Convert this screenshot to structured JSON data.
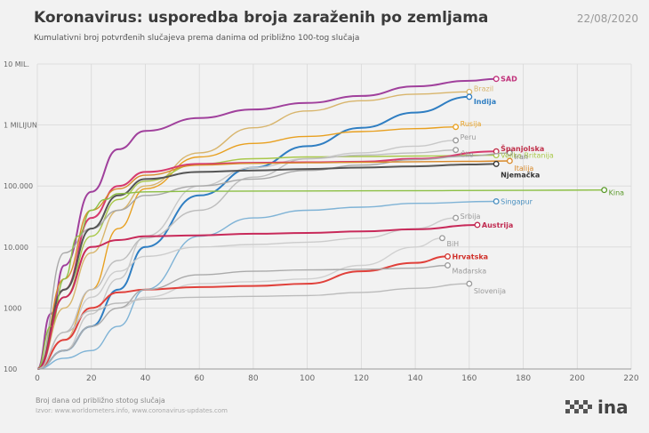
{
  "header": {
    "title": "Koronavirus: usporedba broja zaraženih po zemljama",
    "subtitle": "Kumulativni broj potvrđenih slučajeva prema danima od približno 100-tog slučaja",
    "date": "22/08/2020"
  },
  "footer": {
    "axis_note": "Broj dana od približno stotog slučaja",
    "source": "Izvor: www.worldometers.info, www.coronavirus-updates.com"
  },
  "logo": {
    "text": "ina"
  },
  "chart_data": {
    "type": "line",
    "title": "Koronavirus: usporedba broja zaraženih po zemljama",
    "subtitle": "Kumulativni broj potvrđenih slučajeva prema danima od približno 100-tog slučaja",
    "xlabel": "Broj dana od približno stotog slučaja",
    "ylabel": "",
    "xlim": [
      0,
      220
    ],
    "ylim": [
      100,
      10000000
    ],
    "yscale": "log",
    "grid": true,
    "xticks": [
      0,
      20,
      40,
      60,
      80,
      100,
      120,
      140,
      160,
      180,
      200,
      220
    ],
    "yticks": [
      {
        "value": 100,
        "label": "100"
      },
      {
        "value": 1000,
        "label": "1000"
      },
      {
        "value": 10000,
        "label": "10.000"
      },
      {
        "value": 100000,
        "label": "100.000"
      },
      {
        "value": 1000000,
        "label": "1 MILIJUN"
      },
      {
        "value": 10000000,
        "label": "10 MIL."
      }
    ],
    "series": [
      {
        "name": "SAD",
        "color": "#a0409c",
        "labelColor": "#c0307a",
        "bold": true,
        "x": [
          0,
          5,
          10,
          20,
          30,
          40,
          60,
          80,
          100,
          120,
          140,
          160,
          170
        ],
        "y": [
          100,
          800,
          5000,
          80000,
          400000,
          800000,
          1300000,
          1800000,
          2300000,
          3000000,
          4300000,
          5300000,
          5700000
        ]
      },
      {
        "name": "Brazil",
        "color": "#d8b56c",
        "labelColor": "#d8b56c",
        "bold": false,
        "x": [
          0,
          10,
          20,
          30,
          40,
          60,
          80,
          100,
          120,
          140,
          160
        ],
        "y": [
          100,
          1000,
          8000,
          40000,
          100000,
          350000,
          900000,
          1700000,
          2500000,
          3200000,
          3500000
        ]
      },
      {
        "name": "Indija",
        "color": "#2f7ec2",
        "labelColor": "#2f7ec2",
        "bold": true,
        "x": [
          0,
          10,
          20,
          30,
          40,
          60,
          80,
          100,
          120,
          140,
          160
        ],
        "y": [
          100,
          200,
          500,
          2000,
          10000,
          70000,
          200000,
          450000,
          900000,
          1600000,
          2900000
        ]
      },
      {
        "name": "Rusija",
        "color": "#e8a020",
        "labelColor": "#e8a020",
        "bold": false,
        "x": [
          0,
          10,
          20,
          30,
          40,
          60,
          80,
          100,
          120,
          140,
          155
        ],
        "y": [
          100,
          300,
          2000,
          20000,
          90000,
          300000,
          500000,
          650000,
          780000,
          870000,
          930000
        ]
      },
      {
        "name": "Velika Britanija",
        "color": "#a9c84a",
        "labelColor": "#a9c84a",
        "bold": false,
        "x": [
          0,
          10,
          20,
          30,
          40,
          60,
          80,
          100,
          120,
          140,
          170
        ],
        "y": [
          100,
          1500,
          15000,
          60000,
          120000,
          230000,
          280000,
          300000,
          305000,
          310000,
          320000
        ]
      },
      {
        "name": "Peru",
        "color": "#c8c8c8",
        "labelColor": "#999999",
        "bold": false,
        "x": [
          0,
          10,
          20,
          30,
          40,
          60,
          80,
          100,
          120,
          140,
          155
        ],
        "y": [
          100,
          200,
          800,
          3000,
          15000,
          100000,
          200000,
          280000,
          350000,
          450000,
          560000
        ]
      },
      {
        "name": "Čile",
        "color": "#bdbdbd",
        "labelColor": "#999999",
        "bold": false,
        "x": [
          0,
          10,
          20,
          30,
          40,
          60,
          80,
          100,
          120,
          140,
          155
        ],
        "y": [
          100,
          400,
          2000,
          6000,
          14000,
          40000,
          140000,
          280000,
          320000,
          350000,
          390000
        ]
      },
      {
        "name": "Španjolska",
        "color": "#d63a6e",
        "labelColor": "#c0304a",
        "bold": true,
        "x": [
          0,
          10,
          20,
          30,
          40,
          60,
          80,
          100,
          120,
          140,
          170
        ],
        "y": [
          100,
          2000,
          30000,
          100000,
          170000,
          230000,
          240000,
          245000,
          250000,
          280000,
          370000
        ]
      },
      {
        "name": "Iran",
        "color": "#a8a8a8",
        "labelColor": "#888888",
        "bold": false,
        "x": [
          0,
          10,
          20,
          30,
          40,
          60,
          80,
          100,
          120,
          140,
          160,
          175
        ],
        "y": [
          100,
          8000,
          20000,
          40000,
          70000,
          100000,
          130000,
          180000,
          220000,
          270000,
          310000,
          350000
        ]
      },
      {
        "name": "Italija",
        "color": "#d98a2b",
        "labelColor": "#d98a2b",
        "bold": false,
        "x": [
          0,
          10,
          20,
          30,
          40,
          60,
          80,
          100,
          120,
          140,
          160,
          175
        ],
        "y": [
          100,
          3000,
          40000,
          90000,
          150000,
          220000,
          235000,
          240000,
          245000,
          250000,
          253000,
          258000
        ]
      },
      {
        "name": "Njemačka",
        "color": "#555555",
        "labelColor": "#333333",
        "bold": true,
        "x": [
          0,
          10,
          20,
          30,
          40,
          60,
          80,
          100,
          120,
          140,
          160,
          170
        ],
        "y": [
          100,
          2000,
          20000,
          70000,
          130000,
          170000,
          180000,
          190000,
          200000,
          210000,
          225000,
          230000
        ]
      },
      {
        "name": "Kina",
        "color": "#8cbf44",
        "labelColor": "#5a9a2a",
        "bold": false,
        "x": [
          0,
          5,
          10,
          15,
          20,
          25,
          30,
          40,
          60,
          100,
          150,
          210
        ],
        "y": [
          100,
          500,
          3000,
          15000,
          40000,
          60000,
          75000,
          80000,
          82000,
          83000,
          84000,
          86000
        ]
      },
      {
        "name": "Singapur",
        "color": "#7fb3d6",
        "labelColor": "#4a90c0",
        "bold": false,
        "x": [
          0,
          10,
          20,
          30,
          40,
          60,
          80,
          100,
          120,
          140,
          170
        ],
        "y": [
          100,
          150,
          200,
          500,
          2000,
          15000,
          30000,
          40000,
          45000,
          52000,
          56000
        ]
      },
      {
        "name": "Srbija",
        "color": "#cccccc",
        "labelColor": "#999999",
        "bold": false,
        "x": [
          0,
          10,
          20,
          30,
          40,
          60,
          80,
          100,
          120,
          140,
          155
        ],
        "y": [
          100,
          300,
          1500,
          4000,
          7000,
          10000,
          11000,
          12000,
          14000,
          20000,
          30000
        ]
      },
      {
        "name": "Austrija",
        "color": "#c82a5a",
        "labelColor": "#c02a50",
        "bold": true,
        "x": [
          0,
          10,
          20,
          30,
          40,
          60,
          80,
          100,
          120,
          140,
          163
        ],
        "y": [
          100,
          1500,
          10000,
          13000,
          15000,
          15500,
          16500,
          17000,
          18000,
          19500,
          23000
        ]
      },
      {
        "name": "BiH",
        "color": "#d0d0d0",
        "labelColor": "#999999",
        "bold": false,
        "x": [
          0,
          10,
          20,
          30,
          40,
          60,
          80,
          100,
          120,
          140,
          150
        ],
        "y": [
          100,
          200,
          500,
          1000,
          1500,
          2500,
          2700,
          3000,
          5000,
          10000,
          14000
        ]
      },
      {
        "name": "Hrvatska",
        "color": "#e0403a",
        "labelColor": "#d0302a",
        "bold": true,
        "x": [
          0,
          10,
          20,
          30,
          40,
          60,
          80,
          100,
          120,
          140,
          152
        ],
        "y": [
          100,
          300,
          1000,
          1800,
          2000,
          2200,
          2300,
          2500,
          4000,
          5500,
          7000
        ]
      },
      {
        "name": "Mađarska",
        "color": "#aaaaaa",
        "labelColor": "#999999",
        "bold": false,
        "x": [
          0,
          10,
          20,
          30,
          40,
          60,
          80,
          100,
          120,
          140,
          152
        ],
        "y": [
          100,
          200,
          500,
          1000,
          2000,
          3500,
          4000,
          4200,
          4300,
          4500,
          5000
        ]
      },
      {
        "name": "Slovenija",
        "color": "#bbbbbb",
        "labelColor": "#999999",
        "bold": false,
        "x": [
          0,
          10,
          20,
          30,
          40,
          60,
          80,
          100,
          120,
          140,
          160
        ],
        "y": [
          100,
          400,
          900,
          1200,
          1400,
          1500,
          1550,
          1600,
          1800,
          2100,
          2500
        ]
      }
    ]
  }
}
